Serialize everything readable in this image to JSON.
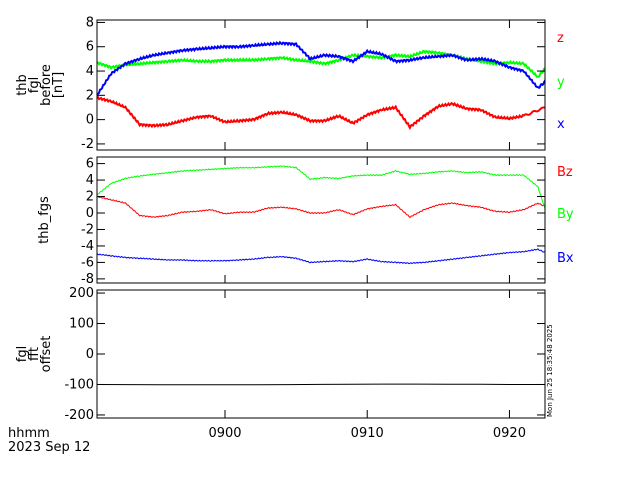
{
  "chart_data": {
    "type": "line",
    "footer": {
      "xunits": "hhmm",
      "date": "2023 Sep 12"
    },
    "x_ticks": [
      "0900",
      "0910",
      "0920"
    ],
    "x_range": [
      "08:51",
      "09:22.5"
    ],
    "timestamp": "Mon Jun 25 18:35:48 2025",
    "panels": [
      {
        "ylabel": [
          "thb",
          "fgl",
          "before",
          "[nT]"
        ],
        "ylim": [
          -2.5,
          8.2
        ],
        "yticks": [
          -2,
          0,
          2,
          4,
          6,
          8
        ],
        "series": [
          {
            "name": "z",
            "color": "#ff0000",
            "x": [
              0,
              1,
              2,
              3,
              4,
              5,
              6,
              7,
              8,
              9,
              10,
              11,
              12,
              13,
              14,
              15,
              16,
              17,
              18,
              19,
              20,
              21,
              22,
              23,
              24,
              25,
              26,
              27,
              28,
              29,
              30,
              31.5
            ],
            "values": [
              1.8,
              1.5,
              1.0,
              -0.4,
              -0.5,
              -0.4,
              -0.1,
              0.2,
              0.3,
              -0.2,
              -0.1,
              0.0,
              0.5,
              0.6,
              0.4,
              -0.1,
              -0.1,
              0.3,
              -0.3,
              0.4,
              0.8,
              1.0,
              -0.6,
              0.3,
              1.1,
              1.3,
              0.9,
              0.8,
              0.2,
              0.1,
              0.3,
              1.0
            ]
          },
          {
            "name": "y",
            "color": "#00ff00",
            "x": [
              0,
              1,
              2,
              3,
              4,
              5,
              6,
              7,
              8,
              9,
              10,
              11,
              12,
              13,
              14,
              15,
              16,
              17,
              18,
              19,
              20,
              21,
              22,
              23,
              24,
              25,
              26,
              27,
              28,
              29,
              30,
              31,
              31.5
            ],
            "values": [
              4.7,
              4.3,
              4.5,
              4.6,
              4.7,
              4.8,
              4.9,
              4.8,
              4.8,
              4.9,
              4.9,
              4.9,
              5.0,
              5.1,
              4.9,
              4.8,
              4.6,
              4.9,
              5.3,
              5.2,
              5.1,
              5.3,
              5.2,
              5.6,
              5.5,
              5.3,
              5.0,
              4.8,
              4.6,
              4.7,
              4.6,
              3.5,
              4.2
            ]
          },
          {
            "name": "x",
            "color": "#0000ff",
            "x": [
              0,
              1,
              2,
              3,
              4,
              5,
              6,
              7,
              8,
              9,
              10,
              11,
              12,
              13,
              14,
              15,
              16,
              17,
              18,
              19,
              20,
              21,
              22,
              23,
              24,
              25,
              26,
              27,
              28,
              29,
              30,
              31,
              31.5
            ],
            "values": [
              2.0,
              3.8,
              4.6,
              5.0,
              5.3,
              5.5,
              5.7,
              5.8,
              5.9,
              6.0,
              6.0,
              6.1,
              6.2,
              6.3,
              6.2,
              5.0,
              5.3,
              5.2,
              4.8,
              5.6,
              5.4,
              4.8,
              4.9,
              5.1,
              5.2,
              5.3,
              4.9,
              5.0,
              4.8,
              4.3,
              4.0,
              2.6,
              3.1
            ]
          }
        ],
        "legend": [
          "z",
          "y",
          "x"
        ]
      },
      {
        "ylabel": [
          "thb_fgs"
        ],
        "ylim": [
          -8.5,
          6.8
        ],
        "yticks": [
          -8,
          -6,
          -4,
          -2,
          0,
          2,
          4,
          6
        ],
        "series": [
          {
            "name": "Bz",
            "color": "#ff0000",
            "x": [
              0,
              1,
              2,
              3,
              4,
              5,
              6,
              7,
              8,
              9,
              10,
              11,
              12,
              13,
              14,
              15,
              16,
              17,
              18,
              19,
              20,
              21,
              22,
              23,
              24,
              25,
              26,
              27,
              28,
              29,
              30,
              31,
              31.5
            ],
            "values": [
              2.0,
              1.6,
              1.2,
              -0.3,
              -0.5,
              -0.3,
              0.1,
              0.2,
              0.4,
              -0.1,
              0.1,
              0.1,
              0.6,
              0.7,
              0.5,
              0.0,
              0.0,
              0.4,
              -0.2,
              0.5,
              0.8,
              1.0,
              -0.5,
              0.4,
              1.0,
              1.2,
              0.9,
              0.7,
              0.2,
              0.1,
              0.4,
              1.2,
              0.8
            ]
          },
          {
            "name": "By",
            "color": "#00ff00",
            "x": [
              0,
              1,
              2,
              3,
              4,
              5,
              6,
              7,
              8,
              9,
              10,
              11,
              12,
              13,
              14,
              15,
              16,
              17,
              18,
              19,
              20,
              21,
              22,
              23,
              24,
              25,
              26,
              27,
              28,
              29,
              30,
              31,
              31.5
            ],
            "values": [
              2.2,
              3.6,
              4.2,
              4.5,
              4.7,
              4.9,
              5.1,
              5.2,
              5.3,
              5.4,
              5.5,
              5.5,
              5.6,
              5.7,
              5.5,
              4.1,
              4.3,
              4.2,
              4.5,
              4.6,
              4.6,
              5.1,
              4.7,
              4.8,
              5.0,
              5.1,
              4.9,
              5.0,
              4.6,
              4.6,
              4.6,
              3.2,
              0.5
            ]
          },
          {
            "name": "Bx",
            "color": "#0000ff",
            "x": [
              0,
              1,
              2,
              3,
              4,
              5,
              6,
              7,
              8,
              9,
              10,
              11,
              12,
              13,
              14,
              15,
              16,
              17,
              18,
              19,
              20,
              21,
              22,
              23,
              24,
              25,
              26,
              27,
              28,
              29,
              30,
              31,
              31.5
            ],
            "values": [
              -5.0,
              -5.2,
              -5.4,
              -5.5,
              -5.6,
              -5.7,
              -5.7,
              -5.8,
              -5.8,
              -5.8,
              -5.7,
              -5.6,
              -5.4,
              -5.3,
              -5.5,
              -6.0,
              -5.9,
              -5.8,
              -5.9,
              -5.6,
              -5.9,
              -6.0,
              -6.1,
              -6.0,
              -5.8,
              -5.6,
              -5.4,
              -5.2,
              -5.0,
              -4.8,
              -4.7,
              -4.4,
              -4.8
            ]
          }
        ],
        "legend": [
          "Bz",
          "By",
          "Bx"
        ]
      },
      {
        "ylabel": [
          "fgl",
          "fft",
          "offset"
        ],
        "ylim": [
          -210,
          210
        ],
        "yticks": [
          -200,
          -100,
          0,
          100,
          200
        ],
        "series": [
          {
            "name": "offset",
            "color": "#000000",
            "x": [
              0,
              31.5
            ],
            "values": [
              -100,
              -100
            ]
          }
        ],
        "legend": []
      }
    ]
  }
}
